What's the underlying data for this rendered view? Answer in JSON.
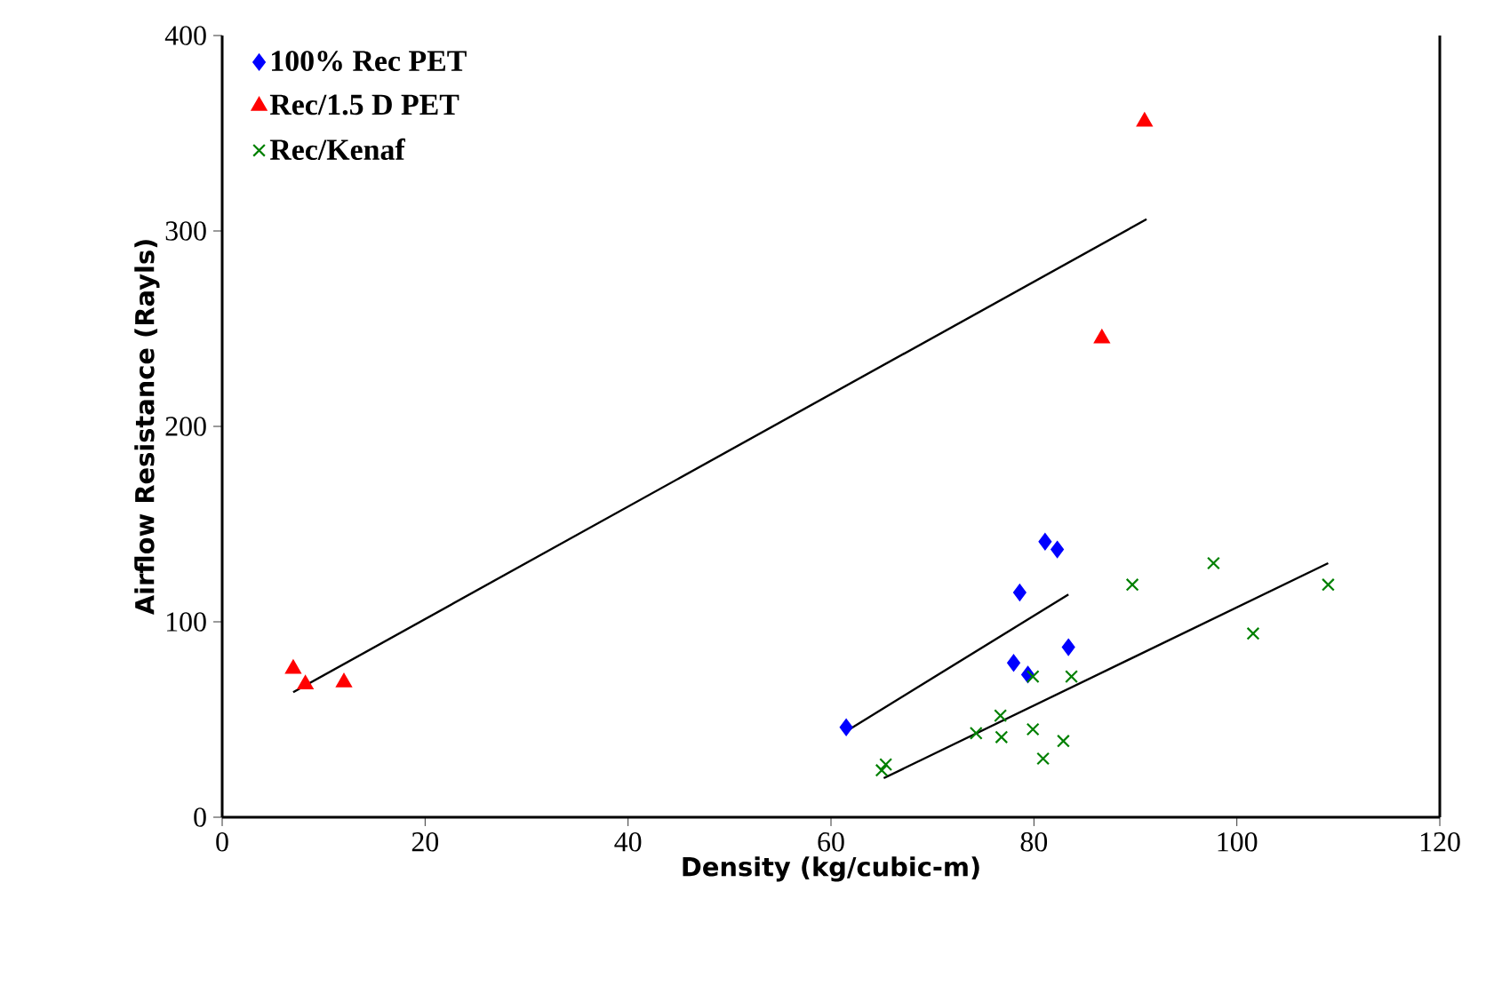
{
  "chart_data": {
    "type": "scatter",
    "xlabel": "Density (kg/cubic-m)",
    "ylabel": "Airflow Resistance (Rayls)",
    "xlim": [
      0,
      120
    ],
    "ylim": [
      0,
      400
    ],
    "xticks": [
      0,
      20,
      40,
      60,
      80,
      100,
      120
    ],
    "yticks": [
      0,
      100,
      200,
      300,
      400
    ],
    "grid": false,
    "legend": "top left",
    "series": [
      {
        "name": "100% Rec PET",
        "color": "#0000ff",
        "marker": "diamond",
        "x": [
          61.5,
          78.6,
          81.1,
          82.3,
          78,
          79.4,
          83.4
        ],
        "values": [
          46,
          115,
          141,
          137,
          79,
          73,
          87
        ]
      },
      {
        "name": "Rec/1.5 D PET",
        "color": "#ff0000",
        "marker": "triangle",
        "x": [
          7,
          8.2,
          12,
          86.7,
          90.9
        ],
        "values": [
          76,
          68,
          69,
          245,
          356
        ]
      },
      {
        "name": "Rec/Kenaf",
        "color": "#008000",
        "marker": "cross",
        "x": [
          65,
          65.4,
          74.3,
          76.7,
          76.8,
          79.9,
          79.9,
          80.9,
          82.9,
          83.7,
          89.7,
          97.7,
          101.6,
          109
        ],
        "values": [
          24,
          27,
          43,
          52,
          41,
          72,
          45,
          30,
          39,
          72,
          119,
          130,
          94,
          119
        ]
      },
      {
        "type": "line",
        "color": "#000000",
        "marker": "none",
        "x": [
          61.5,
          83.4
        ],
        "values": [
          44,
          114
        ]
      },
      {
        "type": "line",
        "color": "#000000",
        "marker": "none",
        "x": [
          7,
          91.1
        ],
        "values": [
          64,
          306
        ]
      },
      {
        "type": "line",
        "color": "#000000",
        "marker": "none",
        "x": [
          65.2,
          109
        ],
        "values": [
          20,
          130
        ]
      }
    ]
  }
}
